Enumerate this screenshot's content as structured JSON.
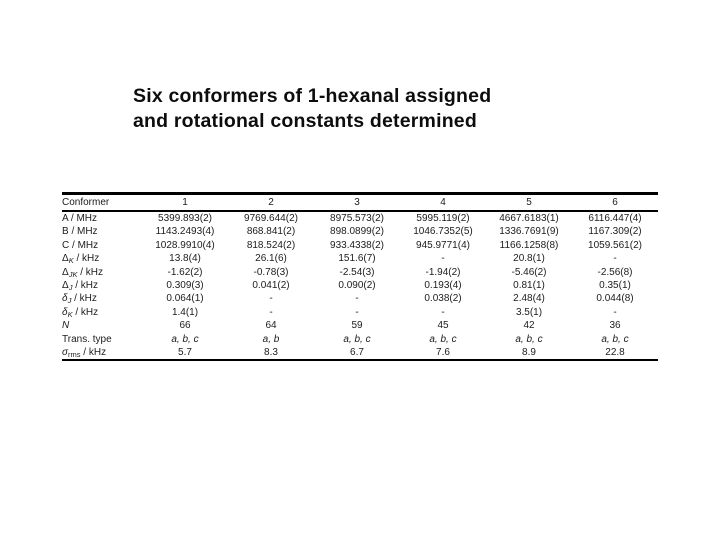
{
  "title": {
    "line1": "Six conformers of 1-hexanal assigned",
    "line2": "and rotational constants determined"
  },
  "table": {
    "header": [
      "Conformer",
      "1",
      "2",
      "3",
      "4",
      "5",
      "6"
    ],
    "rows": [
      {
        "label": {
          "base": "A",
          "italic": false,
          "sub": "",
          "sub_italic": false,
          "unit": " / MHz"
        },
        "values": [
          "5399.893(2)",
          "9769.644(2)",
          "8975.573(2)",
          "5995.119(2)",
          "4667.6183(1)",
          "6116.447(4)"
        ],
        "italic_values": false
      },
      {
        "label": {
          "base": "B",
          "italic": false,
          "sub": "",
          "sub_italic": false,
          "unit": " / MHz"
        },
        "values": [
          "1143.2493(4)",
          "868.841(2)",
          "898.0899(2)",
          "1046.7352(5)",
          "1336.7691(9)",
          "1167.309(2)"
        ],
        "italic_values": false
      },
      {
        "label": {
          "base": "C",
          "italic": false,
          "sub": "",
          "sub_italic": false,
          "unit": " / MHz"
        },
        "values": [
          "1028.9910(4)",
          "818.524(2)",
          "933.4338(2)",
          "945.9771(4)",
          "1166.1258(8)",
          "1059.561(2)"
        ],
        "italic_values": false
      },
      {
        "label": {
          "base": "Δ",
          "italic": false,
          "sub": "K",
          "sub_italic": true,
          "unit": " / kHz"
        },
        "values": [
          "13.8(4)",
          "26.1(6)",
          "151.6(7)",
          "-",
          "20.8(1)",
          "-"
        ],
        "italic_values": false
      },
      {
        "label": {
          "base": "Δ",
          "italic": false,
          "sub": "JK",
          "sub_italic": true,
          "unit": " / kHz"
        },
        "values": [
          "-1.62(2)",
          "-0.78(3)",
          "-2.54(3)",
          "-1.94(2)",
          "-5.46(2)",
          "-2.56(8)"
        ],
        "italic_values": false
      },
      {
        "label": {
          "base": "Δ",
          "italic": false,
          "sub": "J",
          "sub_italic": true,
          "unit": " / kHz"
        },
        "values": [
          "0.309(3)",
          "0.041(2)",
          "0.090(2)",
          "0.193(4)",
          "0.81(1)",
          "0.35(1)"
        ],
        "italic_values": false
      },
      {
        "label": {
          "base": "δ",
          "italic": true,
          "sub": "J",
          "sub_italic": true,
          "unit": " / kHz"
        },
        "values": [
          "0.064(1)",
          "-",
          "-",
          "0.038(2)",
          "2.48(4)",
          "0.044(8)"
        ],
        "italic_values": false
      },
      {
        "label": {
          "base": "δ",
          "italic": true,
          "sub": "K",
          "sub_italic": true,
          "unit": " / kHz"
        },
        "values": [
          "1.4(1)",
          "-",
          "-",
          "-",
          "3.5(1)",
          "-"
        ],
        "italic_values": false
      },
      {
        "label": {
          "base": "N",
          "italic": true,
          "sub": "",
          "sub_italic": false,
          "unit": ""
        },
        "values": [
          "66",
          "64",
          "59",
          "45",
          "42",
          "36"
        ],
        "italic_values": false
      },
      {
        "label": {
          "base": "Trans. type",
          "italic": false,
          "sub": "",
          "sub_italic": false,
          "unit": ""
        },
        "values": [
          "a, b, c",
          "a, b",
          "a, b, c",
          "a, b, c",
          "a, b, c",
          "a, b, c"
        ],
        "italic_values": true
      },
      {
        "label": {
          "base": "σ",
          "italic": true,
          "sub": "rms",
          "sub_italic": false,
          "unit": " / kHz"
        },
        "values": [
          "5.7",
          "8.3",
          "6.7",
          "7.6",
          "8.9",
          "22.8"
        ],
        "italic_values": false
      }
    ]
  }
}
